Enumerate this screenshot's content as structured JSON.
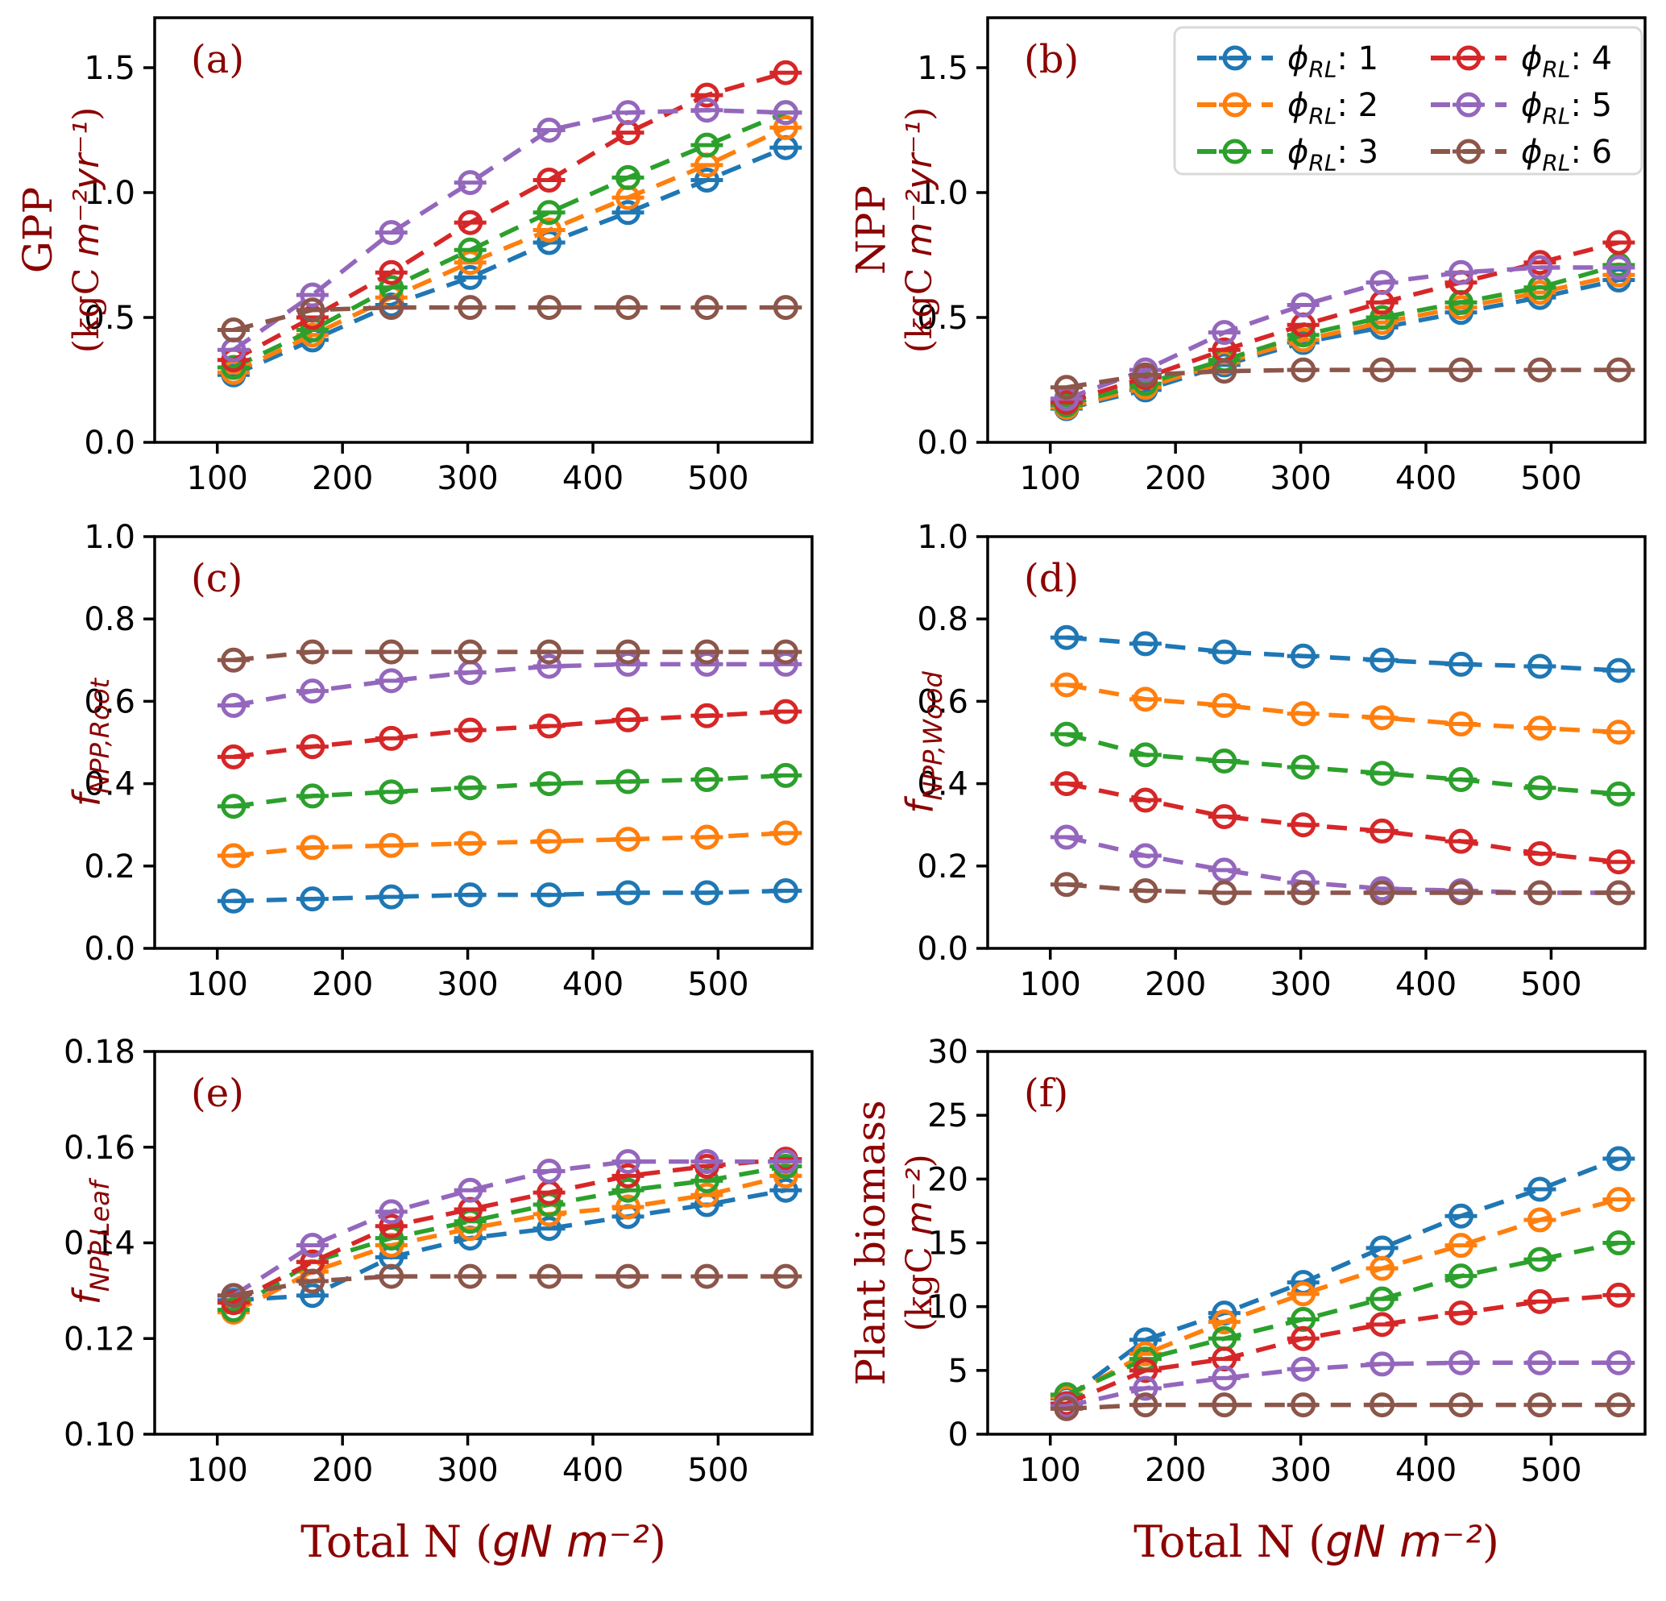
{
  "figure": {
    "background": "#ffffff",
    "axis_color": "#000000",
    "label_color": "#8b0000",
    "tick_label_color": "#000000"
  },
  "series_meta": [
    {
      "key": "phi_1",
      "color": "#1f77b4",
      "legend_label": "ϕ_RL: 1",
      "legend_rich": [
        {
          "t": "ϕ",
          "f": "si"
        },
        {
          "t": "RL",
          "f": "si",
          "sub": true
        },
        {
          "t": ": 1",
          "f": "sans"
        }
      ]
    },
    {
      "key": "phi_2",
      "color": "#ff7f0e",
      "legend_label": "ϕ_RL: 2",
      "legend_rich": [
        {
          "t": "ϕ",
          "f": "si"
        },
        {
          "t": "RL",
          "f": "si",
          "sub": true
        },
        {
          "t": ": 2",
          "f": "sans"
        }
      ]
    },
    {
      "key": "phi_3",
      "color": "#2ca02c",
      "legend_label": "ϕ_RL: 3",
      "legend_rich": [
        {
          "t": "ϕ",
          "f": "si"
        },
        {
          "t": "RL",
          "f": "si",
          "sub": true
        },
        {
          "t": ": 3",
          "f": "sans"
        }
      ]
    },
    {
      "key": "phi_4",
      "color": "#d62728",
      "legend_label": "ϕ_RL: 4",
      "legend_rich": [
        {
          "t": "ϕ",
          "f": "si"
        },
        {
          "t": "RL",
          "f": "si",
          "sub": true
        },
        {
          "t": ": 4",
          "f": "sans"
        }
      ]
    },
    {
      "key": "phi_5",
      "color": "#9467bd",
      "legend_label": "ϕ_RL: 5",
      "legend_rich": [
        {
          "t": "ϕ",
          "f": "si"
        },
        {
          "t": "RL",
          "f": "si",
          "sub": true
        },
        {
          "t": ": 5",
          "f": "sans"
        }
      ]
    },
    {
      "key": "phi_6",
      "color": "#8c564b",
      "legend_label": "ϕ_RL: 6",
      "legend_rich": [
        {
          "t": "ϕ",
          "f": "si"
        },
        {
          "t": "RL",
          "f": "si",
          "sub": true
        },
        {
          "t": ": 6",
          "f": "sans"
        }
      ]
    }
  ],
  "x_axis": {
    "label_text": "Total N (gN m⁻²)",
    "label_rich": [
      {
        "t": "Total N (",
        "f": "serif"
      },
      {
        "t": "gN m",
        "f": "si"
      },
      {
        "t": "⁻²",
        "f": "si"
      },
      {
        "t": ")",
        "f": "serif"
      }
    ],
    "lim": [
      50,
      575
    ],
    "ticks": [
      100,
      200,
      300,
      400,
      500
    ],
    "tick_labels": [
      "100",
      "200",
      "300",
      "400",
      "500"
    ],
    "values": [
      113,
      176,
      239,
      302,
      365,
      428,
      491,
      554
    ]
  },
  "chart_data": [
    {
      "id": "a",
      "type": "line",
      "letter": "(a)",
      "row": 0,
      "legend": false,
      "ylabel_text": "GPP (kgC m⁻²yr⁻¹)",
      "ylabel_lines": [
        [
          {
            "t": "GPP",
            "f": "serif"
          }
        ],
        [
          {
            "t": "(kgC ",
            "f": "serif"
          },
          {
            "t": "m⁻²yr⁻¹",
            "f": "si"
          },
          {
            "t": ")",
            "f": "serif"
          }
        ]
      ],
      "ylim": [
        0,
        1.7
      ],
      "ytick_values": [
        0.0,
        0.5,
        1.0,
        1.5
      ],
      "ytick_labels": [
        "0.0",
        "0.5",
        "1.0",
        "1.5"
      ],
      "series": {
        "phi_1": [
          0.27,
          0.41,
          0.55,
          0.66,
          0.8,
          0.92,
          1.05,
          1.18
        ],
        "phi_2": [
          0.28,
          0.43,
          0.58,
          0.72,
          0.85,
          0.98,
          1.11,
          1.26
        ],
        "phi_3": [
          0.3,
          0.45,
          0.62,
          0.77,
          0.92,
          1.06,
          1.19,
          1.32
        ],
        "phi_4": [
          0.33,
          0.5,
          0.68,
          0.88,
          1.05,
          1.24,
          1.39,
          1.48
        ],
        "phi_5": [
          0.37,
          0.59,
          0.84,
          1.04,
          1.25,
          1.32,
          1.33,
          1.32
        ],
        "phi_6": [
          0.45,
          0.53,
          0.54,
          0.54,
          0.54,
          0.54,
          0.54,
          0.54
        ]
      }
    },
    {
      "id": "b",
      "type": "line",
      "letter": "(b)",
      "row": 0,
      "legend": true,
      "ylabel_text": "NPP (kgC m⁻²yr⁻¹)",
      "ylabel_lines": [
        [
          {
            "t": "NPP",
            "f": "serif"
          }
        ],
        [
          {
            "t": "(kgC ",
            "f": "serif"
          },
          {
            "t": "m⁻²yr⁻¹",
            "f": "si"
          },
          {
            "t": ")",
            "f": "serif"
          }
        ]
      ],
      "ylim": [
        0,
        1.7
      ],
      "ytick_values": [
        0.0,
        0.5,
        1.0,
        1.5
      ],
      "ytick_labels": [
        "0.0",
        "0.5",
        "1.0",
        "1.5"
      ],
      "series": {
        "phi_1": [
          0.135,
          0.21,
          0.31,
          0.4,
          0.46,
          0.52,
          0.58,
          0.65
        ],
        "phi_2": [
          0.14,
          0.22,
          0.32,
          0.41,
          0.48,
          0.54,
          0.6,
          0.67
        ],
        "phi_3": [
          0.15,
          0.235,
          0.33,
          0.43,
          0.5,
          0.56,
          0.62,
          0.71
        ],
        "phi_4": [
          0.16,
          0.26,
          0.37,
          0.47,
          0.56,
          0.64,
          0.72,
          0.8
        ],
        "phi_5": [
          0.175,
          0.29,
          0.44,
          0.55,
          0.64,
          0.68,
          0.7,
          0.7
        ],
        "phi_6": [
          0.22,
          0.27,
          0.285,
          0.29,
          0.29,
          0.29,
          0.29,
          0.29
        ]
      }
    },
    {
      "id": "c",
      "type": "line",
      "letter": "(c)",
      "row": 1,
      "legend": false,
      "ylabel_text": "f_NPP,Root",
      "ylabel_lines": [
        [
          {
            "t": "f",
            "f": "si"
          },
          {
            "t": "NPP,Root",
            "f": "si",
            "sub": true
          }
        ]
      ],
      "ylim": [
        0,
        1.0
      ],
      "ytick_values": [
        0.0,
        0.2,
        0.4,
        0.6,
        0.8,
        1.0
      ],
      "ytick_labels": [
        "0.0",
        "0.2",
        "0.4",
        "0.6",
        "0.8",
        "1.0"
      ],
      "series": {
        "phi_1": [
          0.115,
          0.12,
          0.125,
          0.13,
          0.13,
          0.135,
          0.135,
          0.14
        ],
        "phi_2": [
          0.225,
          0.245,
          0.25,
          0.255,
          0.26,
          0.265,
          0.27,
          0.28
        ],
        "phi_3": [
          0.345,
          0.37,
          0.38,
          0.39,
          0.4,
          0.405,
          0.41,
          0.42
        ],
        "phi_4": [
          0.465,
          0.49,
          0.51,
          0.53,
          0.54,
          0.555,
          0.565,
          0.575
        ],
        "phi_5": [
          0.59,
          0.625,
          0.65,
          0.67,
          0.685,
          0.69,
          0.69,
          0.69
        ],
        "phi_6": [
          0.7,
          0.72,
          0.72,
          0.72,
          0.72,
          0.72,
          0.72,
          0.72
        ]
      }
    },
    {
      "id": "d",
      "type": "line",
      "letter": "(d)",
      "row": 1,
      "legend": false,
      "ylabel_text": "f_NPP,Wood",
      "ylabel_lines": [
        [
          {
            "t": "f",
            "f": "si"
          },
          {
            "t": "NPP,Wood",
            "f": "si",
            "sub": true
          }
        ]
      ],
      "ylim": [
        0,
        1.0
      ],
      "ytick_values": [
        0.0,
        0.2,
        0.4,
        0.6,
        0.8,
        1.0
      ],
      "ytick_labels": [
        "0.0",
        "0.2",
        "0.4",
        "0.6",
        "0.8",
        "1.0"
      ],
      "series": {
        "phi_1": [
          0.755,
          0.74,
          0.72,
          0.71,
          0.7,
          0.69,
          0.685,
          0.675
        ],
        "phi_2": [
          0.64,
          0.605,
          0.59,
          0.57,
          0.56,
          0.545,
          0.535,
          0.525
        ],
        "phi_3": [
          0.52,
          0.47,
          0.455,
          0.44,
          0.425,
          0.41,
          0.39,
          0.375
        ],
        "phi_4": [
          0.4,
          0.36,
          0.32,
          0.3,
          0.285,
          0.26,
          0.23,
          0.21
        ],
        "phi_5": [
          0.27,
          0.225,
          0.19,
          0.16,
          0.145,
          0.14,
          0.135,
          0.135
        ],
        "phi_6": [
          0.155,
          0.14,
          0.135,
          0.135,
          0.135,
          0.135,
          0.135,
          0.135
        ]
      }
    },
    {
      "id": "e",
      "type": "line",
      "letter": "(e)",
      "row": 2,
      "legend": false,
      "ylabel_text": "f_NPP,Leaf",
      "ylabel_lines": [
        [
          {
            "t": "f",
            "f": "si"
          },
          {
            "t": "NPP,Leaf",
            "f": "si",
            "sub": true
          }
        ]
      ],
      "ylim": [
        0.1,
        0.18
      ],
      "ytick_values": [
        0.1,
        0.12,
        0.14,
        0.16,
        0.18
      ],
      "ytick_labels": [
        "0.10",
        "0.12",
        "0.14",
        "0.16",
        "0.18"
      ],
      "series": {
        "phi_1": [
          0.128,
          0.129,
          0.137,
          0.141,
          0.143,
          0.1455,
          0.148,
          0.151
        ],
        "phi_2": [
          0.1255,
          0.134,
          0.1395,
          0.143,
          0.146,
          0.1475,
          0.15,
          0.154
        ],
        "phi_3": [
          0.126,
          0.136,
          0.141,
          0.1445,
          0.148,
          0.151,
          0.153,
          0.156
        ],
        "phi_4": [
          0.1275,
          0.136,
          0.1435,
          0.147,
          0.1505,
          0.154,
          0.156,
          0.1575
        ],
        "phi_5": [
          0.129,
          0.1395,
          0.1465,
          0.151,
          0.155,
          0.157,
          0.157,
          0.157
        ],
        "phi_6": [
          0.129,
          0.132,
          0.133,
          0.133,
          0.133,
          0.133,
          0.133,
          0.133
        ]
      }
    },
    {
      "id": "f",
      "type": "line",
      "letter": "(f)",
      "row": 2,
      "legend": false,
      "ylabel_text": "Plant biomass (kgC m⁻²)",
      "ylabel_lines": [
        [
          {
            "t": "Plant biomass",
            "f": "serif"
          }
        ],
        [
          {
            "t": "(kgC ",
            "f": "serif"
          },
          {
            "t": "m⁻²",
            "f": "si"
          },
          {
            "t": ")",
            "f": "serif"
          }
        ]
      ],
      "ylim": [
        0,
        30
      ],
      "ytick_values": [
        0,
        5,
        10,
        15,
        20,
        25,
        30
      ],
      "ytick_labels": [
        "0",
        "5",
        "10",
        "15",
        "20",
        "25",
        "30"
      ],
      "series": {
        "phi_1": [
          2.8,
          7.4,
          9.5,
          11.9,
          14.6,
          17.1,
          19.2,
          21.6
        ],
        "phi_2": [
          2.9,
          6.3,
          8.8,
          11.0,
          13.0,
          14.8,
          16.8,
          18.4
        ],
        "phi_3": [
          3.1,
          5.9,
          7.5,
          9.0,
          10.6,
          12.4,
          13.7,
          15.0
        ],
        "phi_4": [
          2.4,
          5.0,
          5.9,
          7.5,
          8.6,
          9.5,
          10.4,
          10.9
        ],
        "phi_5": [
          2.2,
          3.6,
          4.4,
          5.1,
          5.5,
          5.6,
          5.6,
          5.6
        ],
        "phi_6": [
          2.0,
          2.3,
          2.3,
          2.3,
          2.3,
          2.3,
          2.3,
          2.3
        ]
      }
    }
  ],
  "legend_box": {
    "columns": [
      [
        "phi_1",
        "phi_2",
        "phi_3"
      ],
      [
        "phi_4",
        "phi_5",
        "phi_6"
      ]
    ],
    "border_color": "#d9d9d9",
    "fill_color": "#ffffff"
  }
}
